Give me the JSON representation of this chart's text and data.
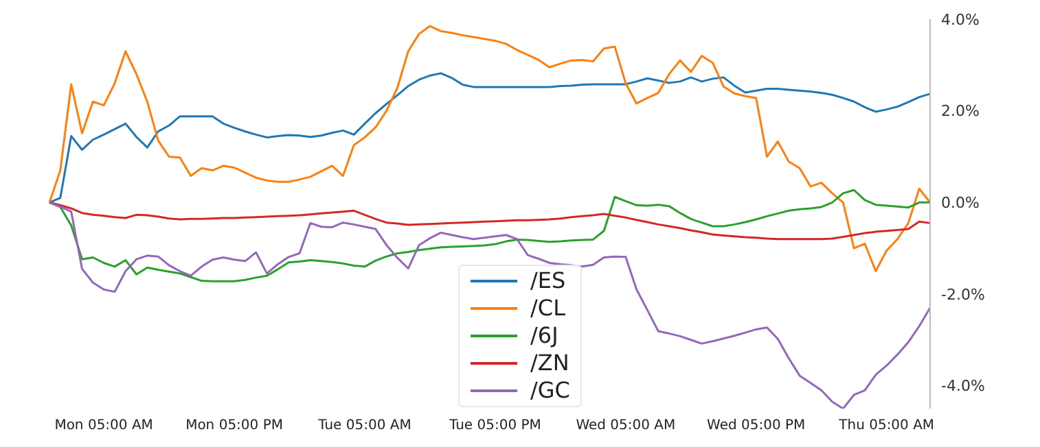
{
  "chart_data": {
    "type": "line",
    "legend": "bottom",
    "grid": false,
    "line_style": "solid",
    "marker": "none",
    "categories": [
      null,
      null,
      null,
      null,
      null,
      "Mon 05:00 AM",
      null,
      null,
      null,
      null,
      null,
      null,
      null,
      null,
      null,
      null,
      null,
      "Mon 05:00 PM",
      null,
      null,
      null,
      null,
      null,
      null,
      null,
      null,
      null,
      null,
      null,
      "Tue 05:00 AM",
      null,
      null,
      null,
      null,
      null,
      null,
      null,
      null,
      null,
      null,
      null,
      "Tue 05:00 PM",
      null,
      null,
      null,
      null,
      null,
      null,
      null,
      null,
      null,
      null,
      null,
      "Wed 05:00 AM",
      null,
      null,
      null,
      null,
      null,
      null,
      null,
      null,
      null,
      null,
      null,
      "Wed 05:00 PM",
      null,
      null,
      null,
      null,
      null,
      null,
      null,
      null,
      null,
      null,
      null,
      "Thu 05:00 AM",
      null,
      null,
      null,
      null
    ],
    "ylim": [
      -4.5,
      4
    ],
    "yticks": [
      {
        "value": 4,
        "label": "4.0%"
      },
      {
        "value": 2,
        "label": "2.0%"
      },
      {
        "value": 0,
        "label": "0.0%"
      },
      {
        "value": -2,
        "label": "-2.0%"
      },
      {
        "value": -4,
        "label": "-4.0%"
      }
    ],
    "series": [
      {
        "name": "/ES",
        "color": "#1f77b4",
        "values": [
          0,
          0.1,
          1.45,
          1.15,
          1.37,
          1.48,
          1.6,
          1.72,
          1.43,
          1.2,
          1.55,
          1.68,
          1.88,
          1.88,
          1.88,
          1.88,
          1.72,
          1.63,
          1.55,
          1.48,
          1.42,
          1.45,
          1.47,
          1.46,
          1.43,
          1.46,
          1.52,
          1.57,
          1.48,
          1.72,
          1.95,
          2.15,
          2.34,
          2.54,
          2.68,
          2.77,
          2.82,
          2.72,
          2.57,
          2.52,
          2.52,
          2.52,
          2.52,
          2.52,
          2.52,
          2.52,
          2.52,
          2.54,
          2.55,
          2.57,
          2.58,
          2.58,
          2.58,
          2.58,
          2.64,
          2.71,
          2.66,
          2.61,
          2.64,
          2.73,
          2.64,
          2.7,
          2.73,
          2.55,
          2.4,
          2.44,
          2.48,
          2.48,
          2.46,
          2.44,
          2.42,
          2.39,
          2.35,
          2.28,
          2.2,
          2.08,
          1.98,
          2.03,
          2.09,
          2.19,
          2.3,
          2.37
        ]
      },
      {
        "name": "/CL",
        "color": "#ff7f0e",
        "values": [
          0,
          0.7,
          2.58,
          1.51,
          2.2,
          2.12,
          2.6,
          3.3,
          2.8,
          2.2,
          1.35,
          1.0,
          0.98,
          0.58,
          0.75,
          0.7,
          0.8,
          0.76,
          0.65,
          0.54,
          0.48,
          0.45,
          0.45,
          0.5,
          0.56,
          0.68,
          0.8,
          0.58,
          1.25,
          1.42,
          1.64,
          2.0,
          2.5,
          3.3,
          3.68,
          3.85,
          3.74,
          3.7,
          3.65,
          3.61,
          3.57,
          3.53,
          3.46,
          3.33,
          3.22,
          3.11,
          2.95,
          3.03,
          3.1,
          3.11,
          3.08,
          3.36,
          3.4,
          2.6,
          2.16,
          2.28,
          2.39,
          2.8,
          3.1,
          2.85,
          3.2,
          3.05,
          2.53,
          2.38,
          2.32,
          2.28,
          1.0,
          1.33,
          0.89,
          0.75,
          0.35,
          0.43,
          0.2,
          0.0,
          -1.0,
          -0.9,
          -1.5,
          -1.05,
          -0.8,
          -0.45,
          0.3,
          0.0
        ]
      },
      {
        "name": "/6J",
        "color": "#2ca02c",
        "values": [
          0,
          -0.1,
          -0.5,
          -1.24,
          -1.2,
          -1.32,
          -1.4,
          -1.26,
          -1.57,
          -1.42,
          -1.47,
          -1.51,
          -1.55,
          -1.63,
          -1.71,
          -1.72,
          -1.72,
          -1.72,
          -1.69,
          -1.64,
          -1.6,
          -1.46,
          -1.31,
          -1.29,
          -1.26,
          -1.28,
          -1.3,
          -1.33,
          -1.38,
          -1.4,
          -1.27,
          -1.18,
          -1.11,
          -1.08,
          -1.04,
          -1.01,
          -0.98,
          -0.97,
          -0.96,
          -0.95,
          -0.94,
          -0.91,
          -0.85,
          -0.81,
          -0.82,
          -0.84,
          -0.86,
          -0.85,
          -0.83,
          -0.82,
          -0.81,
          -0.62,
          0.12,
          0.03,
          -0.06,
          -0.07,
          -0.05,
          -0.08,
          -0.23,
          -0.36,
          -0.44,
          -0.52,
          -0.52,
          -0.48,
          -0.43,
          -0.37,
          -0.3,
          -0.24,
          -0.18,
          -0.15,
          -0.13,
          -0.1,
          0.0,
          0.2,
          0.27,
          0.05,
          -0.05,
          -0.07,
          -0.09,
          -0.11,
          0.0,
          0.0
        ]
      },
      {
        "name": "/ZN",
        "color": "#d62728",
        "values": [
          0,
          -0.06,
          -0.13,
          -0.23,
          -0.27,
          -0.29,
          -0.32,
          -0.34,
          -0.27,
          -0.28,
          -0.31,
          -0.35,
          -0.37,
          -0.36,
          -0.36,
          -0.35,
          -0.34,
          -0.34,
          -0.33,
          -0.32,
          -0.31,
          -0.3,
          -0.29,
          -0.28,
          -0.26,
          -0.24,
          -0.22,
          -0.2,
          -0.18,
          -0.27,
          -0.36,
          -0.44,
          -0.46,
          -0.49,
          -0.48,
          -0.47,
          -0.46,
          -0.45,
          -0.44,
          -0.43,
          -0.42,
          -0.41,
          -0.4,
          -0.39,
          -0.39,
          -0.38,
          -0.37,
          -0.35,
          -0.32,
          -0.3,
          -0.28,
          -0.25,
          -0.29,
          -0.33,
          -0.38,
          -0.43,
          -0.48,
          -0.52,
          -0.56,
          -0.61,
          -0.65,
          -0.7,
          -0.72,
          -0.74,
          -0.76,
          -0.77,
          -0.79,
          -0.8,
          -0.8,
          -0.8,
          -0.8,
          -0.8,
          -0.79,
          -0.75,
          -0.71,
          -0.67,
          -0.64,
          -0.62,
          -0.6,
          -0.58,
          -0.42,
          -0.45
        ]
      },
      {
        "name": "/GC",
        "color": "#9467bd",
        "values": [
          0,
          -0.09,
          -0.2,
          -1.45,
          -1.75,
          -1.9,
          -1.95,
          -1.5,
          -1.24,
          -1.16,
          -1.18,
          -1.37,
          -1.5,
          -1.6,
          -1.4,
          -1.25,
          -1.2,
          -1.25,
          -1.28,
          -1.09,
          -1.55,
          -1.35,
          -1.19,
          -1.11,
          -0.45,
          -0.53,
          -0.54,
          -0.44,
          -0.48,
          -0.53,
          -0.58,
          -0.93,
          -1.21,
          -1.44,
          -0.93,
          -0.78,
          -0.66,
          -0.71,
          -0.76,
          -0.8,
          -0.77,
          -0.74,
          -0.71,
          -0.8,
          -1.15,
          -1.23,
          -1.32,
          -1.35,
          -1.37,
          -1.4,
          -1.36,
          -1.2,
          -1.18,
          -1.19,
          -1.9,
          -2.35,
          -2.81,
          -2.86,
          -2.92,
          -3.0,
          -3.08,
          -3.03,
          -2.97,
          -2.91,
          -2.84,
          -2.77,
          -2.73,
          -2.98,
          -3.4,
          -3.78,
          -3.94,
          -4.1,
          -4.35,
          -4.5,
          -4.2,
          -4.1,
          -3.76,
          -3.56,
          -3.32,
          -3.05,
          -2.7,
          -2.3
        ]
      }
    ]
  }
}
